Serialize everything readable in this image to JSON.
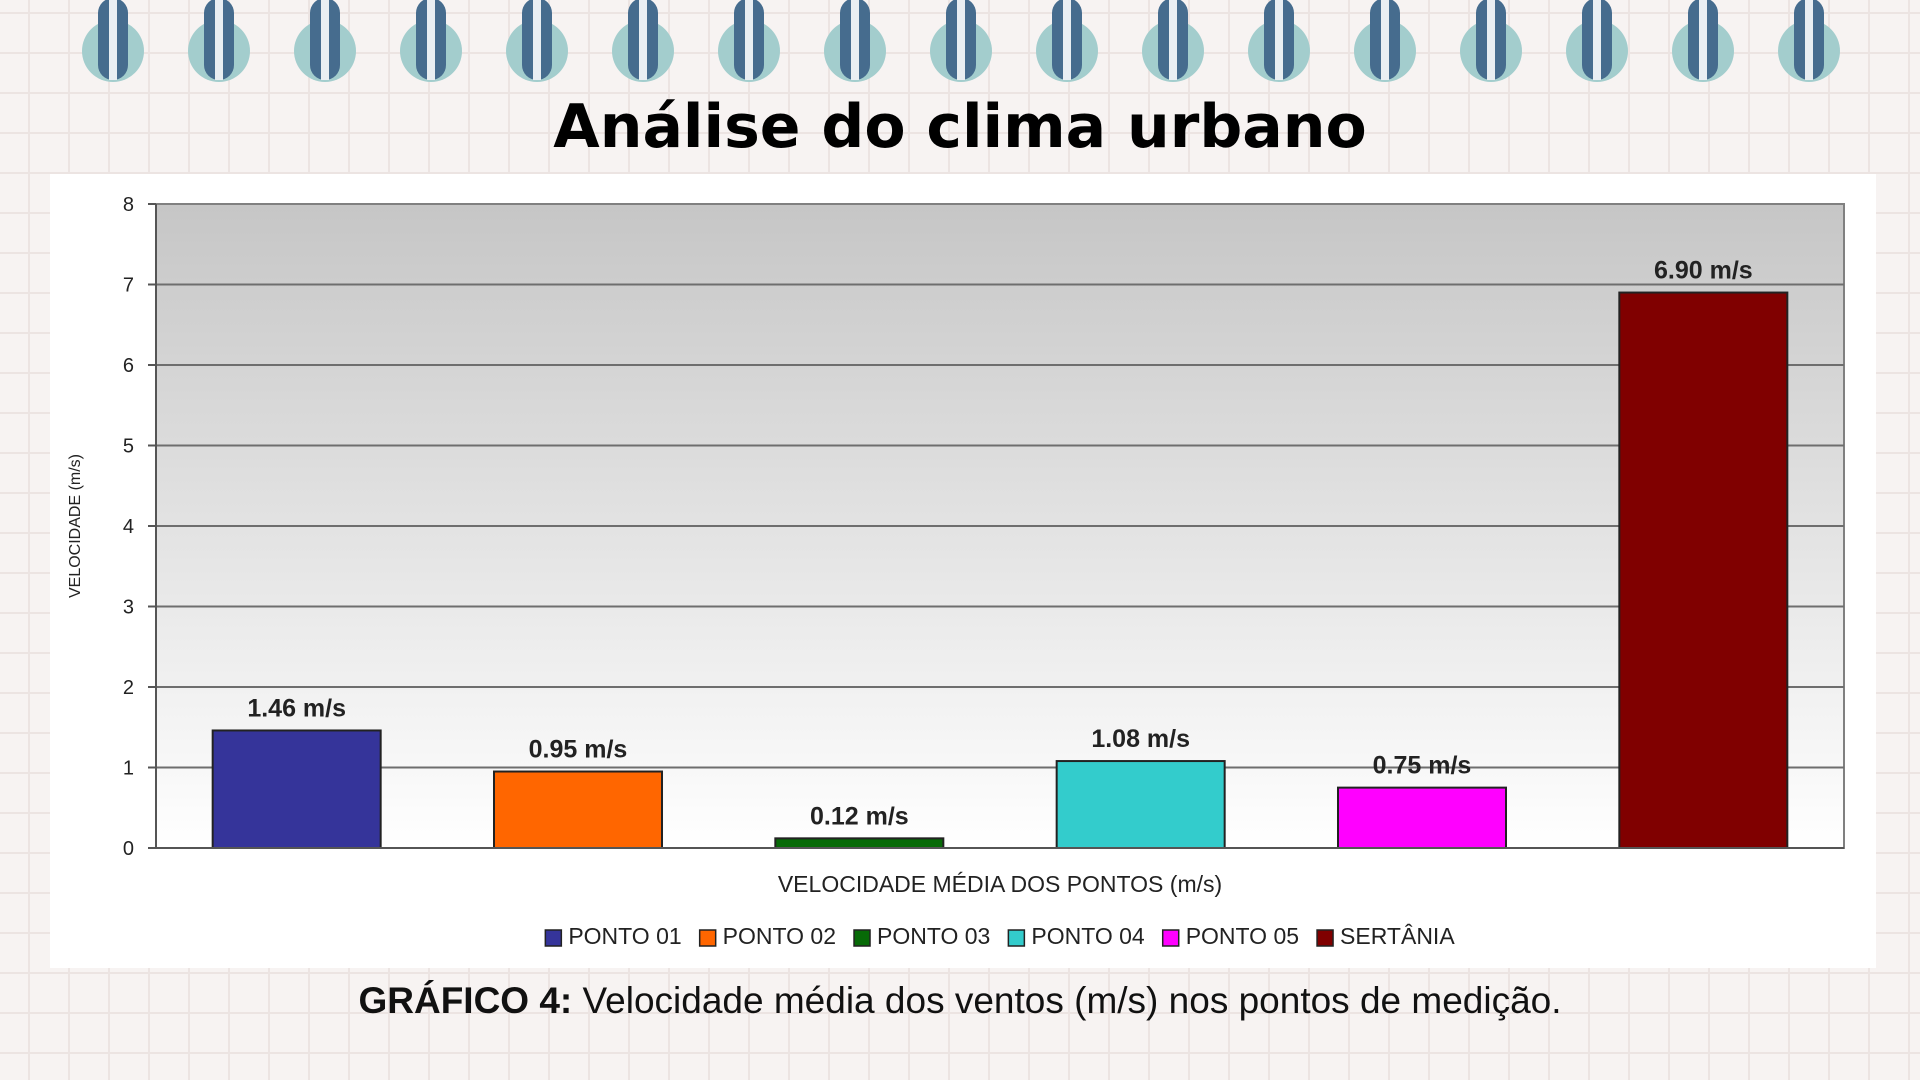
{
  "slide": {
    "title": "Análise do clima urbano",
    "caption_label": "GRÁFICO 4:",
    "caption_text": " Velocidade média dos ventos (m/s) nos pontos de medição."
  },
  "notebook": {
    "ring_count": 17,
    "ring_color": "#a3cdcd",
    "wire_color": "#466c8e"
  },
  "chart_data": {
    "type": "bar",
    "categories": [
      "PONTO 01",
      "PONTO 02",
      "PONTO 03",
      "PONTO 04",
      "PONTO 05",
      "SERTÂNIA"
    ],
    "values": [
      1.46,
      0.95,
      0.12,
      1.08,
      0.75,
      6.9
    ],
    "data_labels": [
      "1.46 m/s",
      "0.95 m/s",
      "0.12 m/s",
      "1.08 m/s",
      "0.75 m/s",
      "6.90 m/s"
    ],
    "colors": [
      "#35349a",
      "#ff6600",
      "#076a07",
      "#33cccc",
      "#ff00ff",
      "#800000"
    ],
    "xlabel": "VELOCIDADE MÉDIA DOS PONTOS (m/s)",
    "ylabel": "VELOCIDADE (m/s)",
    "ylim": [
      0,
      8
    ],
    "yticks": [
      0,
      1,
      2,
      3,
      4,
      5,
      6,
      7,
      8
    ],
    "grid": true,
    "legend_position": "bottom",
    "plot_background": "gray gradient"
  }
}
